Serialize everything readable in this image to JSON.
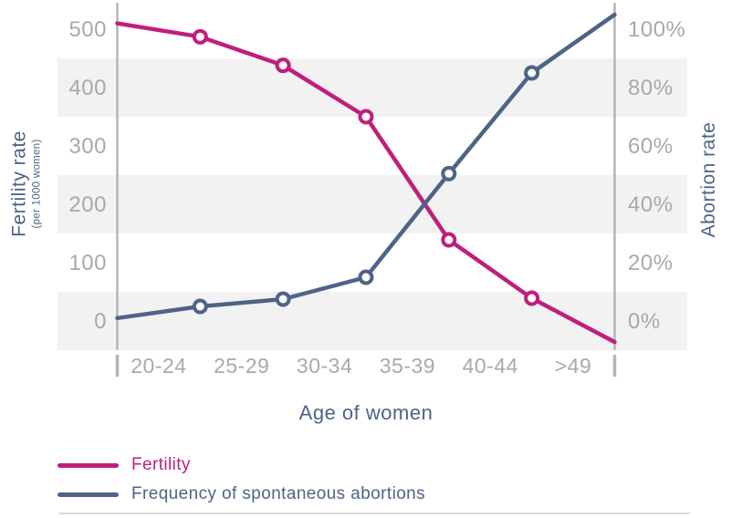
{
  "colors": {
    "fertility_pink": "#c01e7d",
    "abortion_slate": "#4e6387",
    "band_gray": "#f2f2f2",
    "axis_gray": "#b5b5b5",
    "tick_label_gray": "#a9a9a9",
    "divider_gray": "#d9d9d9",
    "marker_fill": "#ffffff"
  },
  "chart_data": {
    "type": "line",
    "title": "",
    "x_axis": {
      "label": "Age of women",
      "categories": [
        "20-24",
        "25-29",
        "30-34",
        "35-39",
        "40-44",
        ">49"
      ]
    },
    "y_left": {
      "label": "Fertility rate",
      "sublabel": "(per 1000 women)",
      "tick_labels": [
        "0",
        "100",
        "200",
        "300",
        "400",
        "500"
      ],
      "tick_values": [
        0,
        100,
        200,
        300,
        400,
        500
      ],
      "range": [
        0,
        500
      ]
    },
    "y_right": {
      "label": "Abortion rate",
      "tick_labels": [
        "0%",
        "20%",
        "40%",
        "60%",
        "80%",
        "100%"
      ],
      "tick_values": [
        0,
        20,
        40,
        60,
        80,
        100
      ],
      "range": [
        0,
        100
      ]
    },
    "points_at": "left axis edge, five category boundaries, right axis edge",
    "series": [
      {
        "name": "Fertility",
        "axis": "left",
        "color": "#c01e7d",
        "values": [
          510,
          487,
          438,
          350,
          139,
          39,
          -36
        ],
        "markers": [
          false,
          true,
          true,
          true,
          true,
          true,
          false
        ]
      },
      {
        "name": "Frequency of spontaneous abortions",
        "axis": "right",
        "color": "#4e6387",
        "values": [
          1,
          5,
          7.5,
          15,
          50.5,
          85,
          105
        ],
        "markers": [
          false,
          true,
          true,
          true,
          true,
          true,
          false
        ]
      }
    ],
    "grid": "horizontal striped bands centered on 0/200/400 (0%/40%/80%)",
    "legend_position": "bottom-left",
    "band_tick_values": [
      400,
      200,
      0
    ]
  }
}
